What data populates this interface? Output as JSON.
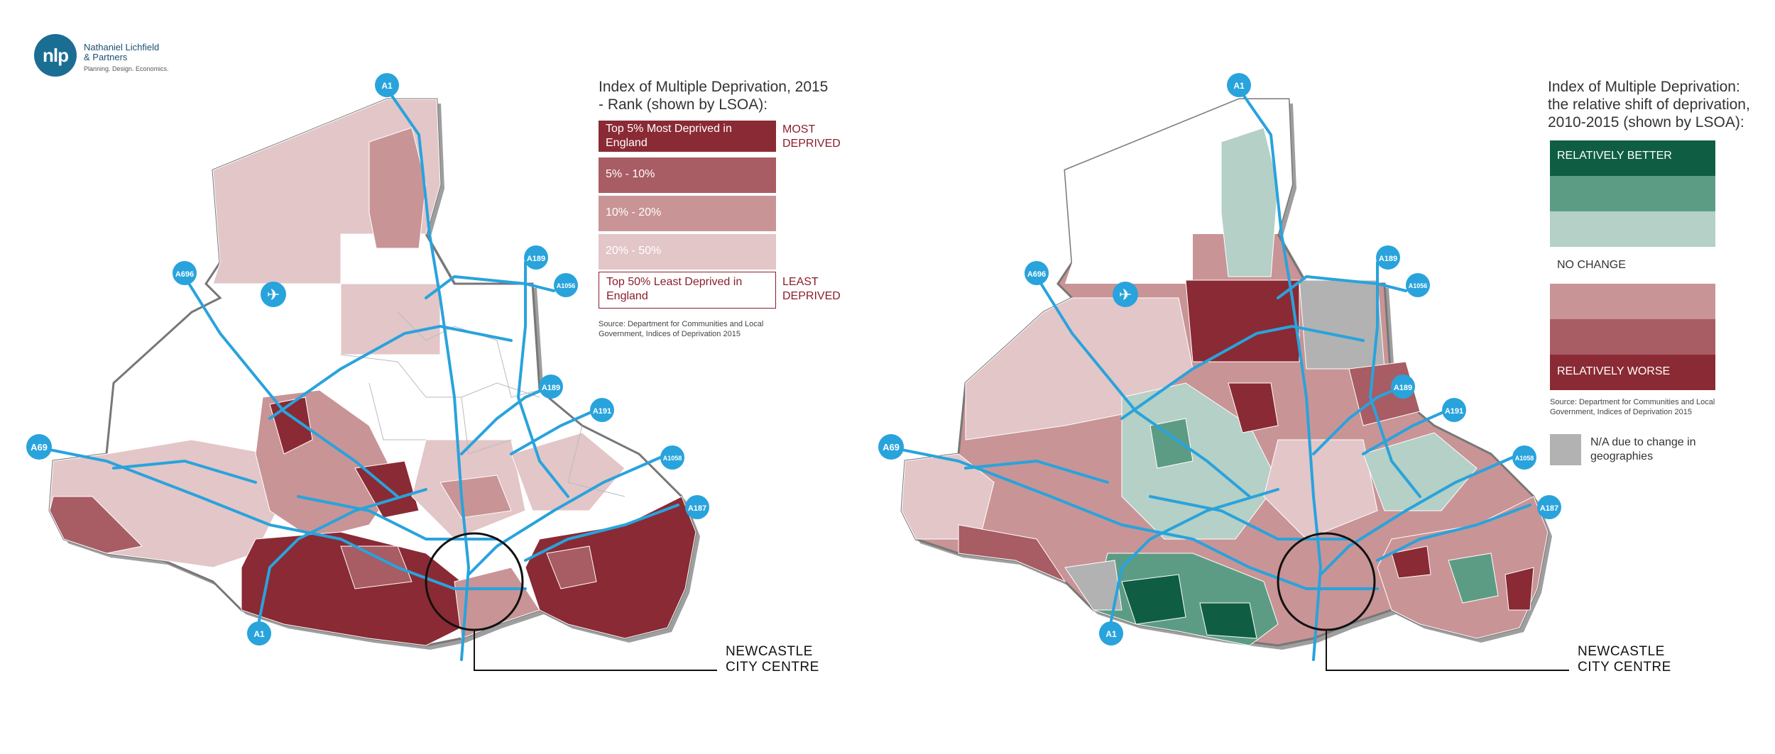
{
  "logo": {
    "initials": "nlp",
    "name_line1": "Nathaniel Lichfield",
    "name_line2": "& Partners",
    "tagline": "Planning. Design. Economics."
  },
  "colors": {
    "deprived_top5": "#8a2a34",
    "deprived_5_10": "#a85c63",
    "deprived_10_20": "#c99496",
    "deprived_20_50": "#e3c6c8",
    "better_strong": "#0f5e44",
    "better_mid": "#5d9c84",
    "better_light": "#b5d0c6",
    "worse_light": "#c99496",
    "worse_mid": "#a85c63",
    "worse_strong": "#8a2a34",
    "na_grey": "#b2b2b2",
    "road_blue": "#29a3dc",
    "boundary_grey": "#8e8e8e"
  },
  "left_map": {
    "legend": {
      "title_line1": "Index of Multiple Deprivation, 2015",
      "title_line2": "- Rank (shown by LSOA):",
      "classes": [
        {
          "label_line1": "Top 5% Most Deprived in",
          "label_line2": "England"
        },
        {
          "label_line1": "5% - 10%"
        },
        {
          "label_line1": "10% - 20%"
        },
        {
          "label_line1": "20% - 50%"
        },
        {
          "label_line1": "Top 50% Least Deprived in",
          "label_line2": "England"
        }
      ],
      "most_line1": "MOST",
      "most_line2": "DEPRIVED",
      "least_line1": "LEAST",
      "least_line2": "DEPRIVED",
      "source_line1": "Source: Department for Communities and Local",
      "source_line2": "Government, Indices of Deprivation 2015"
    },
    "roads": [
      "A1",
      "A696",
      "A189",
      "A1056",
      "A189",
      "A191",
      "A69",
      "A1058",
      "A187",
      "A1"
    ],
    "callout_line1": "NEWCASTLE",
    "callout_line2": "CITY CENTRE"
  },
  "right_map": {
    "legend": {
      "title_line1": "Index of Multiple Deprivation:",
      "title_line2": "the relative shift of deprivation,",
      "title_line3": "2010-2015 (shown by LSOA):",
      "better": "RELATIVELY BETTER",
      "no_change": "NO CHANGE",
      "worse": "RELATIVELY WORSE",
      "source_line1": "Source: Department for Communities and Local",
      "source_line2": "Government, Indices of Deprivation 2015",
      "na_line1": "N/A due to change in",
      "na_line2": "geographies"
    },
    "roads": [
      "A1",
      "A696",
      "A189",
      "A1056",
      "A189",
      "A191",
      "A69",
      "A1058",
      "A187",
      "A1"
    ],
    "callout_line1": "NEWCASTLE",
    "callout_line2": "CITY CENTRE"
  }
}
